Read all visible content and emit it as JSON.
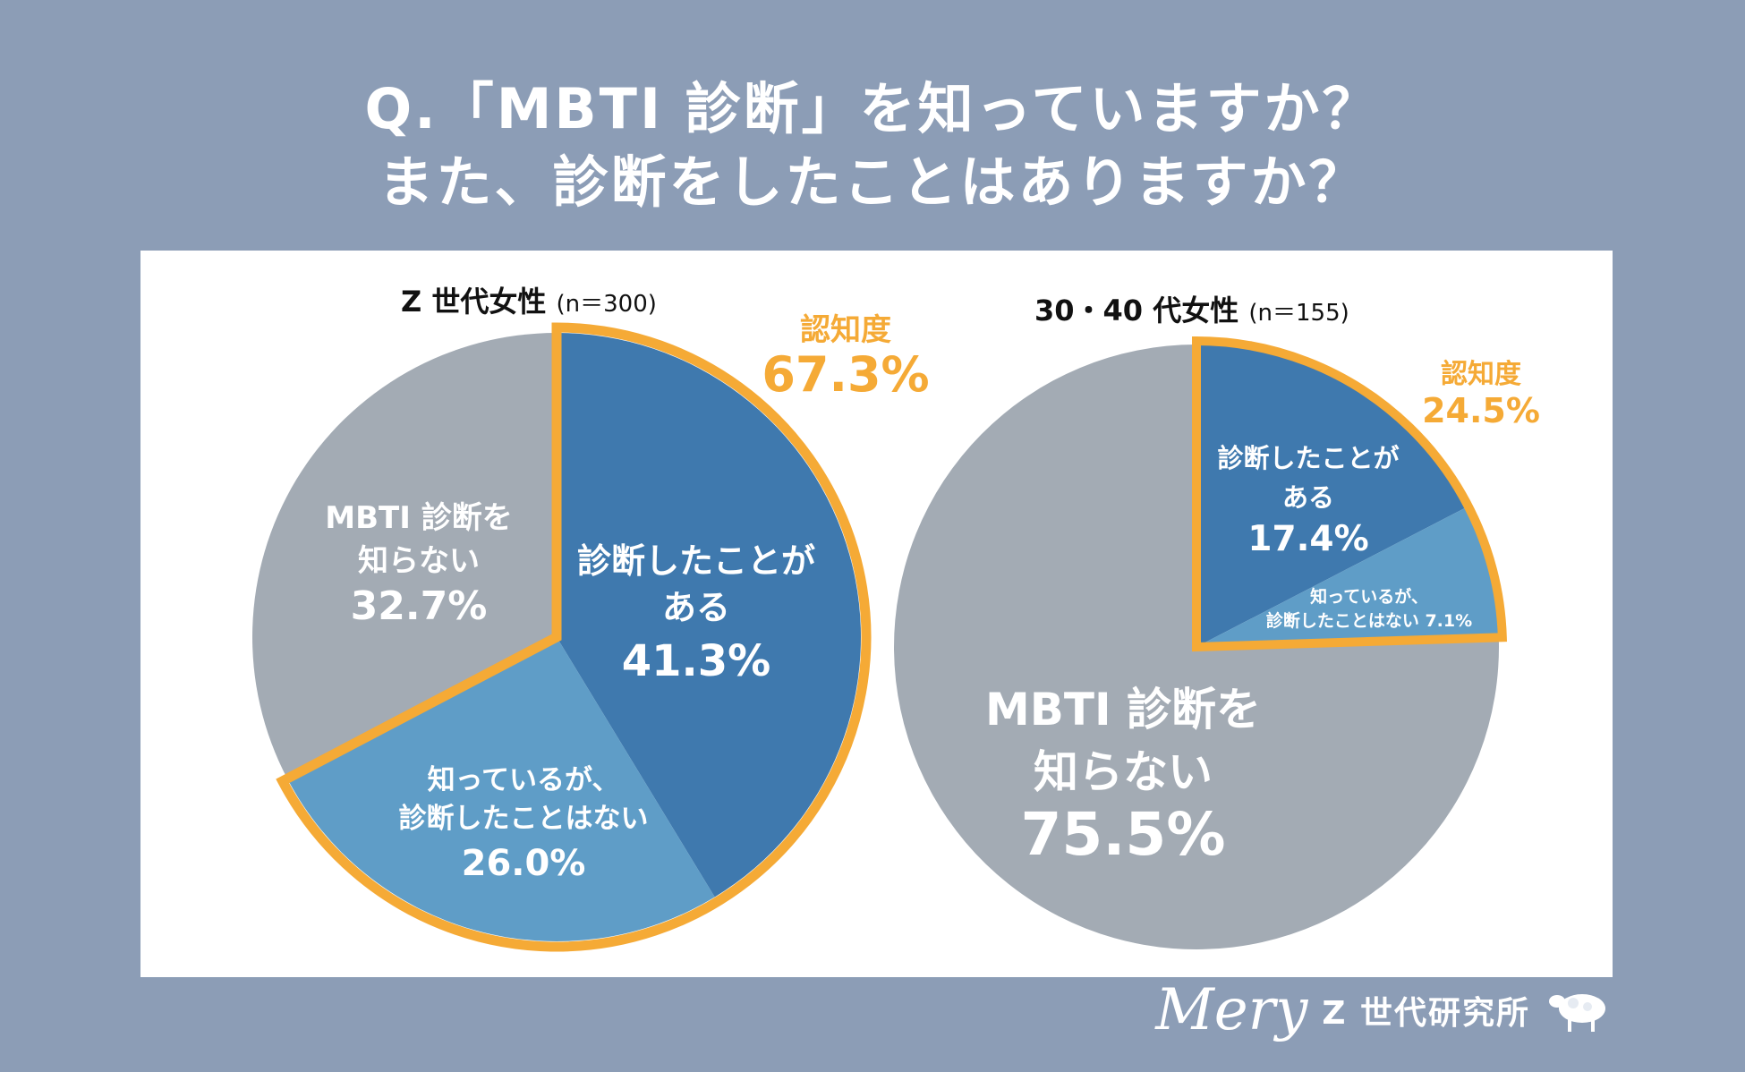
{
  "title": {
    "line1": "Q.「MBTI 診断」を知っていますか？",
    "line2": "また、診断をしたことはありますか？"
  },
  "footer": {
    "brand": "Mery",
    "lab": "Z 世代研究所"
  },
  "colors": {
    "background": "#8c9db6",
    "dark_blue": "#3f79ae",
    "light_blue": "#5f9dc7",
    "gray": "#a3abb4",
    "highlight": "#f5aa36"
  },
  "chart_data": [
    {
      "type": "pie",
      "title": "Z 世代女性",
      "n_label": "(n＝300)",
      "slices": [
        {
          "label_lines": [
            "診断したことが",
            "ある"
          ],
          "value": 41.3,
          "value_label": "41.3%",
          "color": "#3f79ae"
        },
        {
          "label_lines": [
            "知っているが、",
            "診断したことはない"
          ],
          "value": 26.0,
          "value_label": "26.0%",
          "color": "#5f9dc7"
        },
        {
          "label_lines": [
            "MBTI 診断を",
            "知らない"
          ],
          "value": 32.7,
          "value_label": "32.7%",
          "color": "#a3abb4"
        }
      ],
      "awareness": {
        "label": "認知度",
        "value": 67.3,
        "value_label": "67.3%"
      }
    },
    {
      "type": "pie",
      "title": "30・40 代女性",
      "n_label": "(n＝155)",
      "slices": [
        {
          "label_lines": [
            "診断したことが",
            "ある"
          ],
          "value": 17.4,
          "value_label": "17.4%",
          "color": "#3f79ae"
        },
        {
          "label_lines": [
            "知っているが、",
            "診断したことはない 7.1%"
          ],
          "value": 7.1,
          "value_label": "",
          "color": "#5f9dc7"
        },
        {
          "label_lines": [
            "MBTI 診断を",
            "知らない"
          ],
          "value": 75.5,
          "value_label": "75.5%",
          "color": "#a3abb4"
        }
      ],
      "awareness": {
        "label": "認知度",
        "value": 24.5,
        "value_label": "24.5%"
      }
    }
  ]
}
